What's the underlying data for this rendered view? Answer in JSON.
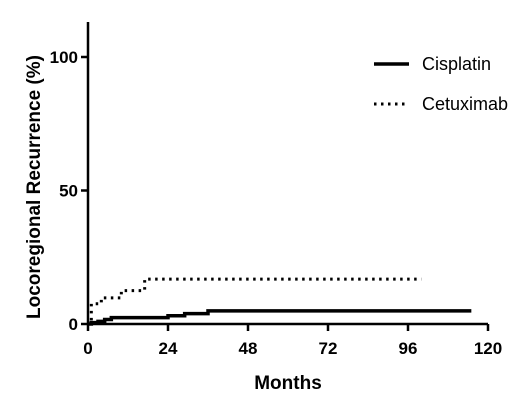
{
  "chart_data": {
    "type": "line",
    "title": "",
    "xlabel": "Months",
    "ylabel": "Locoregional Recurrence (%)",
    "xlim": [
      0,
      120
    ],
    "ylim": [
      0,
      110
    ],
    "x_ticks": [
      0,
      24,
      48,
      72,
      96,
      120
    ],
    "y_ticks": [
      0,
      50,
      100
    ],
    "grid": false,
    "legend_position": "top-right",
    "series": [
      {
        "name": "Cisplatin",
        "style": "solid",
        "color": "#000000",
        "points": [
          [
            0,
            0
          ],
          [
            1,
            0.5
          ],
          [
            3,
            1
          ],
          [
            5,
            1.7
          ],
          [
            7,
            2.4
          ],
          [
            23,
            2.4
          ],
          [
            24,
            3.1
          ],
          [
            28,
            3.1
          ],
          [
            29,
            3.9
          ],
          [
            35,
            3.9
          ],
          [
            36,
            4.9
          ],
          [
            115,
            4.9
          ]
        ]
      },
      {
        "name": "Cetuximab",
        "style": "dotted",
        "color": "#000000",
        "points": [
          [
            0,
            0
          ],
          [
            1,
            7.6
          ],
          [
            3,
            7.6
          ],
          [
            4,
            9.8
          ],
          [
            9,
            9.8
          ],
          [
            10,
            12.5
          ],
          [
            15,
            12.5
          ],
          [
            17,
            16.8
          ],
          [
            100,
            16.8
          ]
        ]
      }
    ]
  }
}
